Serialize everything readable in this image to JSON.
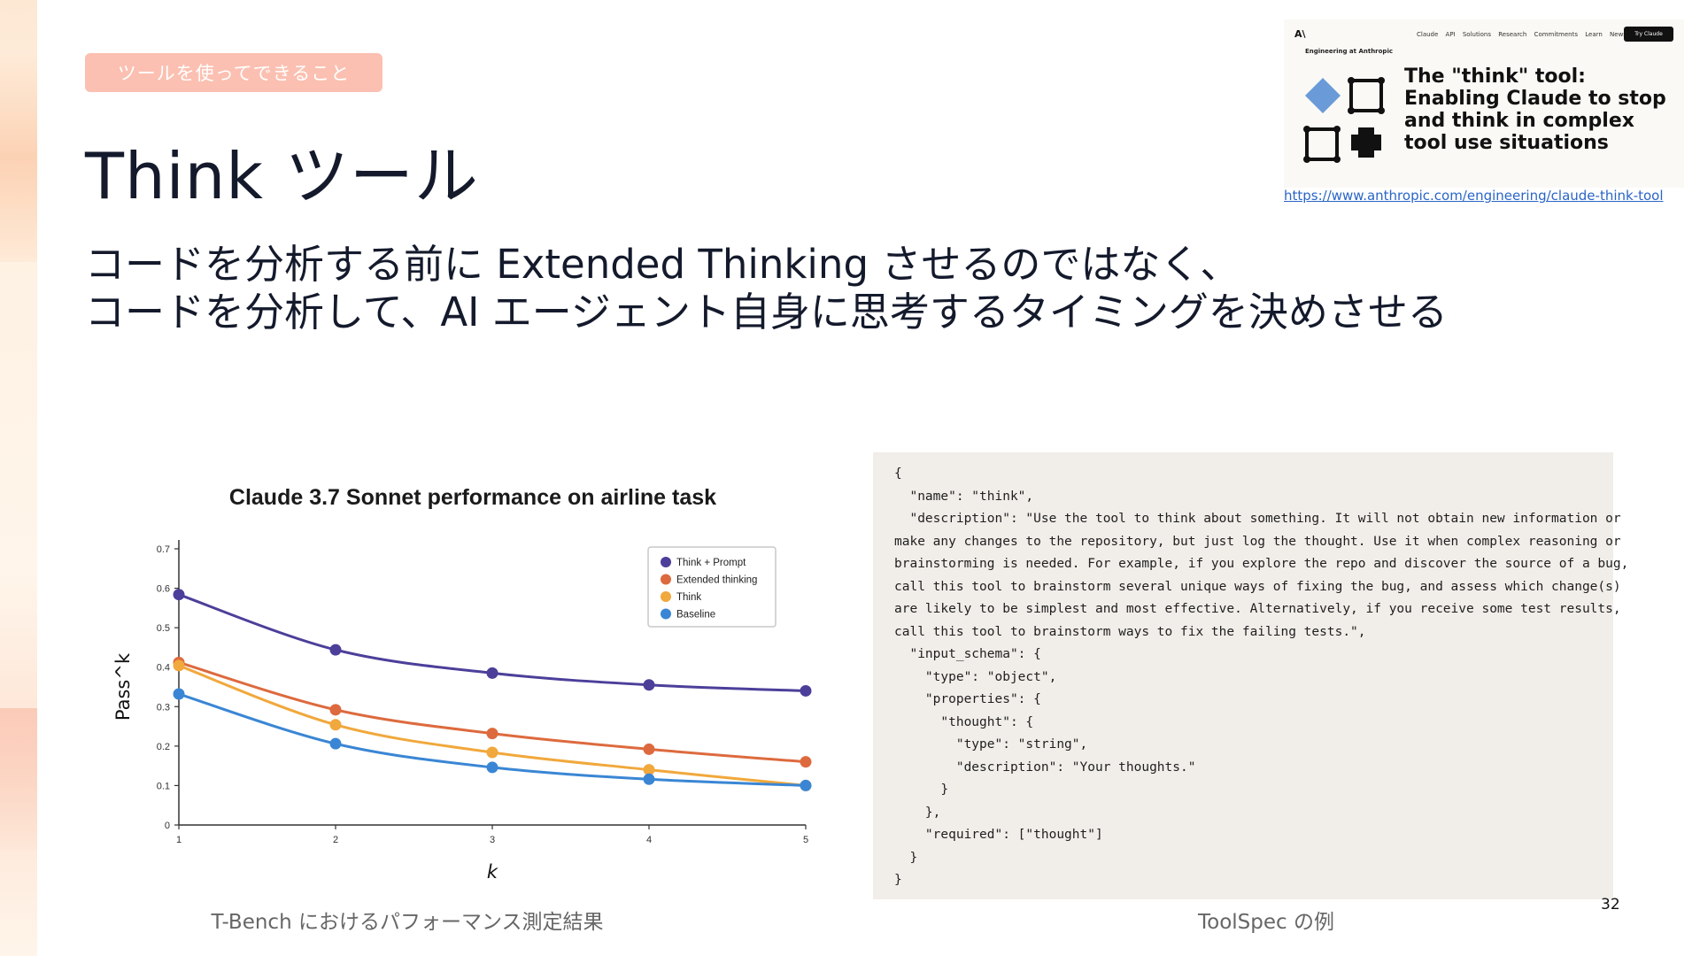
{
  "tag": "ツールを使ってできること",
  "title": "Think ツール",
  "subtitle": {
    "line1": "コードを分析する前に Extended Thinking させるのではなく、",
    "line2": "コードを分析して、AI エージェント自身に思考するタイミングを決めさせる"
  },
  "article": {
    "logo": "A\\",
    "nav_links": "Claude API Solutions Research Commitments Learn News",
    "try_button": "Try Claude",
    "section": "Engineering at Anthropic",
    "title": "The \"think\" tool: Enabling Claude to stop and think in complex tool use situations",
    "accent": "#6a9bd8"
  },
  "link": "https://www.anthropic.com/engineering/claude-think-tool",
  "chart_data": {
    "type": "line",
    "title": "Claude 3.7 Sonnet performance on airline task",
    "xlabel": "k",
    "ylabel": "Pass^k",
    "x": [
      1,
      2,
      3,
      4,
      5
    ],
    "xticks": [
      "1",
      "2",
      "3",
      "4",
      "5"
    ],
    "yticks": [
      "0",
      "0.1",
      "0.2",
      "0.3",
      "0.4",
      "0.5",
      "0.6",
      "0.7"
    ],
    "ylim": [
      0,
      0.7
    ],
    "legend_position": "top-right",
    "series": [
      {
        "name": "Think + Prompt",
        "color": "#4b3f9a",
        "values": [
          0.584,
          0.444,
          0.385,
          0.355,
          0.34
        ]
      },
      {
        "name": "Extended thinking",
        "color": "#dd6a3e",
        "values": [
          0.412,
          0.292,
          0.232,
          0.192,
          0.16
        ]
      },
      {
        "name": "Think",
        "color": "#f1a83c",
        "values": [
          0.404,
          0.254,
          0.184,
          0.14,
          0.1
        ]
      },
      {
        "name": "Baseline",
        "color": "#3a86d4",
        "values": [
          0.332,
          0.206,
          0.146,
          0.116,
          0.1
        ]
      }
    ]
  },
  "chart_caption": "T-Bench におけるパフォーマンス測定結果",
  "code": "{\n  \"name\": \"think\",\n  \"description\": \"Use the tool to think about something. It will not obtain new information or\nmake any changes to the repository, but just log the thought. Use it when complex reasoning or\nbrainstorming is needed. For example, if you explore the repo and discover the source of a bug,\ncall this tool to brainstorm several unique ways of fixing the bug, and assess which change(s)\nare likely to be simplest and most effective. Alternatively, if you receive some test results,\ncall this tool to brainstorm ways to fix the failing tests.\",\n  \"input_schema\": {\n    \"type\": \"object\",\n    \"properties\": {\n      \"thought\": {\n        \"type\": \"string\",\n        \"description\": \"Your thoughts.\"\n      }\n    },\n    \"required\": [\"thought\"]\n  }\n}",
  "code_caption": "ToolSpec の例",
  "page_number": "32"
}
